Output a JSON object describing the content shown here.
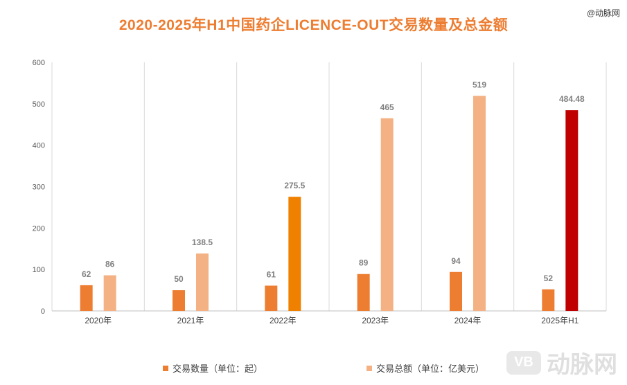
{
  "page": {
    "title": "2020-2025年H1中国药企LICENCE-OUT交易数量及总金额",
    "source": "@动脉网",
    "watermark_badge": "VB",
    "watermark_text": "动脉网"
  },
  "chart_data": {
    "type": "bar",
    "title": "2020-2025年H1中国药企LICENCE-OUT交易数量及总金额",
    "categories": [
      "2020年",
      "2021年",
      "2022年",
      "2023年",
      "2024年",
      "2025年H1"
    ],
    "ylim": [
      0,
      600
    ],
    "yticks": [
      0,
      100,
      200,
      300,
      400,
      500,
      600
    ],
    "grid": "vertical category separators",
    "legend_position": "bottom",
    "series": [
      {
        "name": "交易数量（单位：起）",
        "values": [
          62,
          50,
          61,
          89,
          94,
          52
        ],
        "labels": [
          "62",
          "50",
          "61",
          "89",
          "94",
          "52"
        ],
        "color": "#ED7D31",
        "point_colors": [
          "#ED7D31",
          "#ED7D31",
          "#ED7D31",
          "#ED7D31",
          "#ED7D31",
          "#ED7D31"
        ]
      },
      {
        "name": "交易总额（单位：亿美元）",
        "values": [
          86,
          138.5,
          275.5,
          465,
          519,
          484.48
        ],
        "labels": [
          "86",
          "138.5",
          "275.5",
          "465",
          "519",
          "484.48"
        ],
        "color": "#F4B183",
        "point_colors": [
          "#F4B183",
          "#F4B183",
          "#F08000",
          "#F4B183",
          "#F4B183",
          "#C00000"
        ]
      }
    ]
  }
}
